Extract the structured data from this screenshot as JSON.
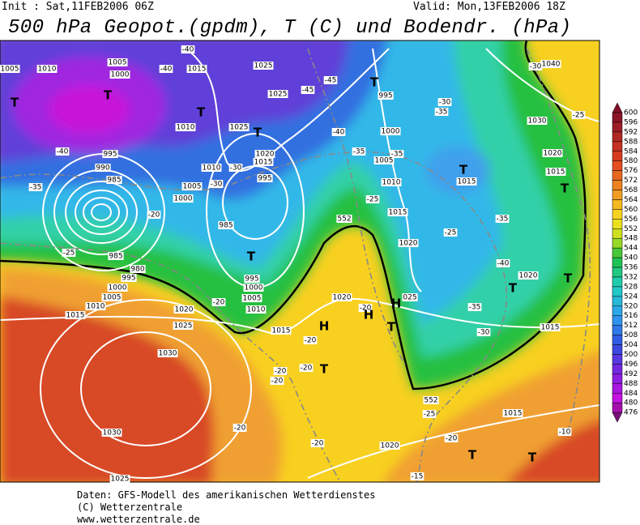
{
  "header": {
    "init": "Init : Sat,11FEB2006 06Z",
    "valid": "Valid: Mon,13FEB2006 18Z",
    "title": "500 hPa Geopot.(gpdm), T (C) und Bodendr. (hPa)"
  },
  "colorbar": {
    "levels": [
      600,
      596,
      592,
      588,
      584,
      580,
      576,
      572,
      568,
      564,
      560,
      556,
      552,
      548,
      544,
      540,
      536,
      532,
      528,
      524,
      520,
      516,
      512,
      508,
      504,
      500,
      496,
      492,
      488,
      484,
      480,
      476
    ]
  },
  "map_labels": [
    "1005",
    "1010",
    "1005",
    "1000",
    "-40",
    "-40",
    "1015",
    "1025",
    "1025",
    "-45",
    "-45",
    "T",
    "995",
    "T",
    "T",
    "T",
    "1010",
    "1025",
    "T",
    "-40",
    "1000",
    "-30",
    "-35",
    "1030",
    "-25",
    "1040",
    "-30",
    "-40",
    "995",
    "1020",
    "1015",
    "-35",
    "-35",
    "1005",
    "1020",
    "990",
    "1010",
    "-30",
    "995",
    "T",
    "1015",
    "1015",
    "T",
    "-35",
    "985",
    "1005",
    "-30",
    "1000",
    "-25",
    "1010",
    "1015",
    "-35",
    "-20",
    "985",
    "552",
    "-25",
    "1020",
    "-25",
    "985",
    "T",
    "-40",
    "980",
    "995",
    "1000",
    "1005",
    "1010",
    "995",
    "1000",
    "1020",
    "T",
    "T",
    "1015",
    "1005",
    "1010",
    "-20",
    "1020",
    "1020",
    "-20",
    "H",
    "025",
    "-35",
    "H",
    "T",
    "1025",
    "H",
    "1015",
    "-30",
    "1015",
    "-20",
    "1030",
    "-20",
    "T",
    "-20",
    "-20",
    "-25",
    "1015",
    "-20",
    "-10",
    "1030",
    "1020",
    "-20",
    "-20",
    "T",
    "T",
    "-15",
    "1025",
    "552"
  ],
  "footer": {
    "lines": [
      "Daten: GFS-Modell des amerikanischen Wetterdienstes",
      "(C) Wetterzentrale",
      "www.wetterzentrale.de"
    ]
  }
}
